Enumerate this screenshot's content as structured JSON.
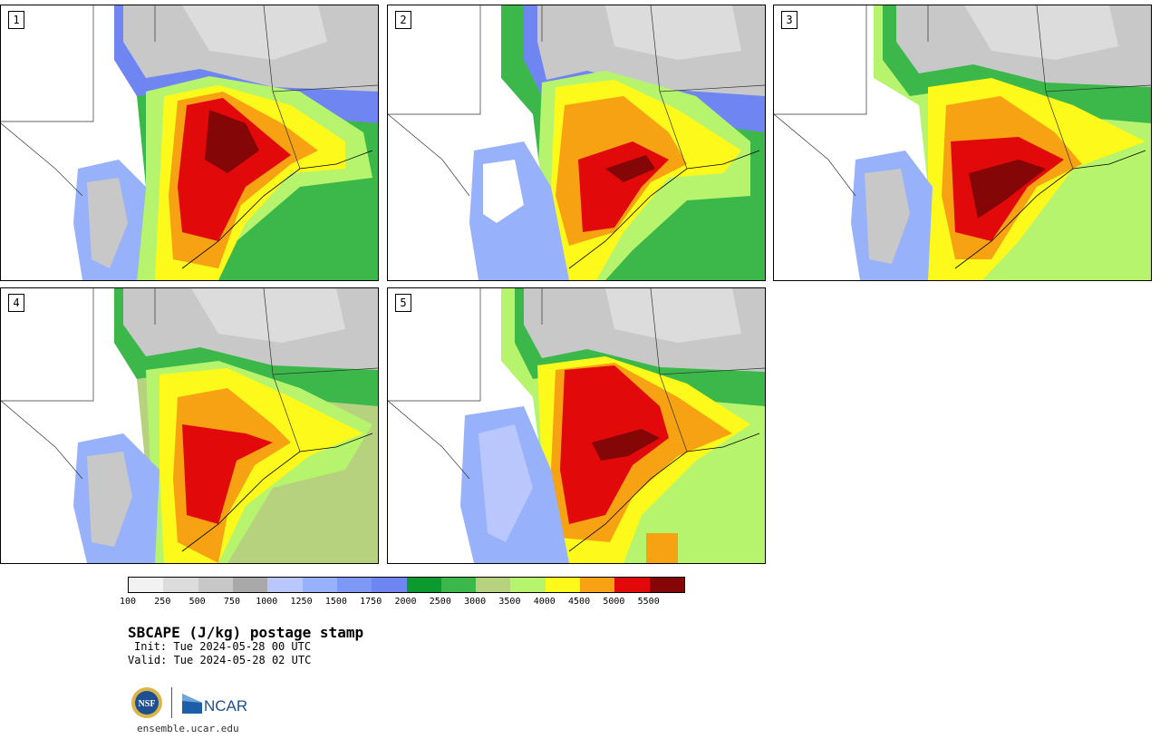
{
  "panels": [
    {
      "label": "1"
    },
    {
      "label": "2"
    },
    {
      "label": "3"
    },
    {
      "label": "4"
    },
    {
      "label": "5"
    }
  ],
  "legend": {
    "colors": [
      "#f2f2f2",
      "#dcdcdc",
      "#c8c8c8",
      "#a9a9a9",
      "#b9c7fc",
      "#97b1fa",
      "#7e98f6",
      "#6f86f2",
      "#0b9a2d",
      "#3cb84a",
      "#b6d27e",
      "#b7f46e",
      "#fdf91b",
      "#f7a212",
      "#e10909",
      "#850606"
    ],
    "labels": [
      "100",
      "250",
      "500",
      "750",
      "1000",
      "1250",
      "1500",
      "1750",
      "2000",
      "2500",
      "3000",
      "3500",
      "4000",
      "4500",
      "5000",
      "5500"
    ]
  },
  "title": "SBCAPE (J/kg) postage stamp",
  "init": "Init: Tue 2024-05-28 00 UTC",
  "valid": "Valid: Tue 2024-05-28 02 UTC",
  "logos": {
    "nsf": "NSF",
    "ncar": "NCAR"
  },
  "site": "ensemble.ucar.edu"
}
